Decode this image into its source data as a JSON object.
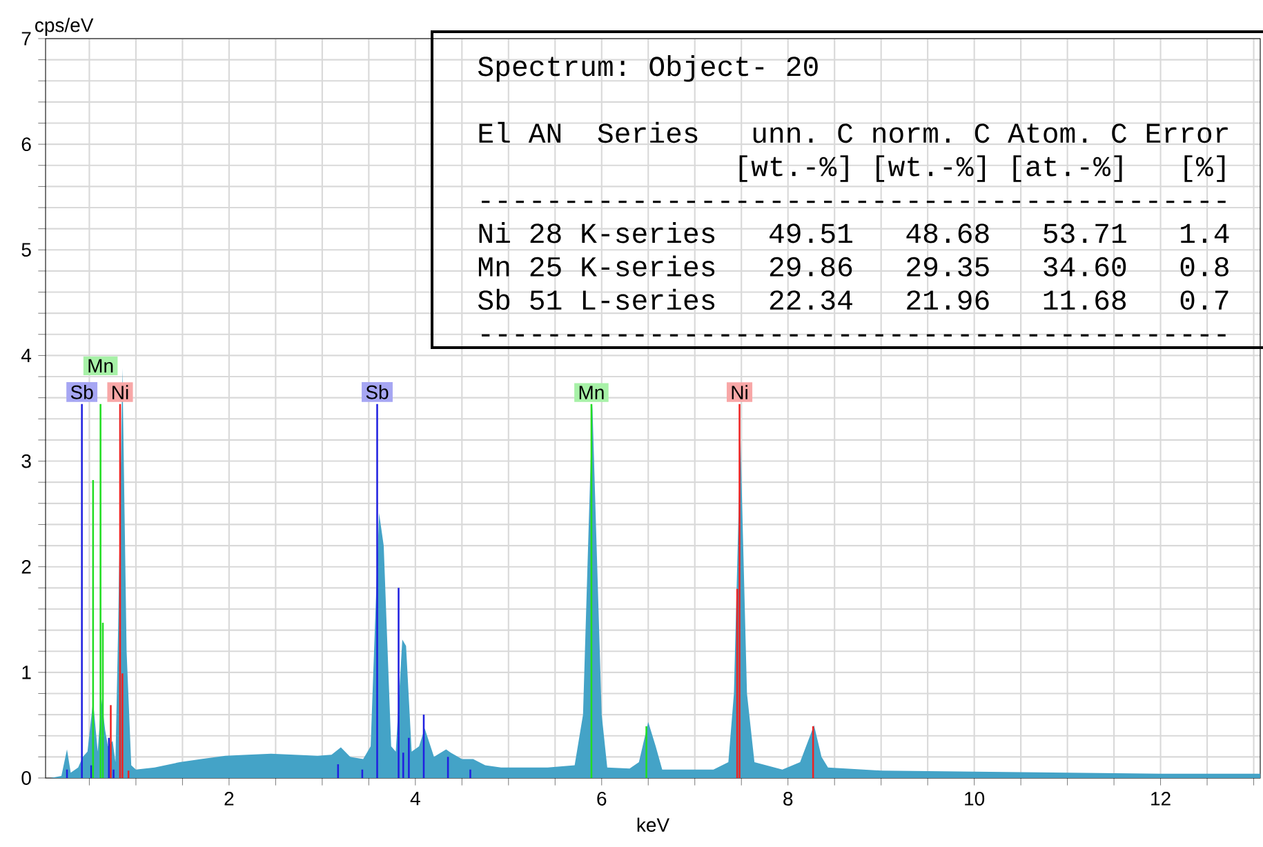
{
  "chart_data": {
    "type": "area",
    "xlabel": "keV",
    "ylabel": "cps/eV",
    "xlim": [
      0.03,
      13.07
    ],
    "ylim": [
      0,
      7
    ],
    "xticks": [
      {
        "value": 0.5,
        "label": null
      },
      {
        "value": 1,
        "label": null
      },
      {
        "value": 1.5,
        "label": null
      },
      2,
      {
        "value": 2.5,
        "label": null
      },
      {
        "value": 3,
        "label": null
      },
      {
        "value": 3.5,
        "label": null
      },
      4,
      {
        "value": 4.5,
        "label": null
      },
      {
        "value": 5,
        "label": null
      },
      {
        "value": 5.5,
        "label": null
      },
      6,
      {
        "value": 6.5,
        "label": null
      },
      {
        "value": 7,
        "label": null
      },
      {
        "value": 7.5,
        "label": null
      },
      8,
      {
        "value": 8.5,
        "label": null
      },
      {
        "value": 9,
        "label": null
      },
      {
        "value": 9.5,
        "label": null
      },
      10,
      {
        "value": 10.5,
        "label": null
      },
      {
        "value": 11,
        "label": null
      },
      {
        "value": 11.5,
        "label": null
      },
      12,
      {
        "value": 12.5,
        "label": null
      },
      {
        "value": 13,
        "label": null
      }
    ],
    "yticks": [
      0,
      {
        "value": 0.2,
        "label": null
      },
      {
        "value": 0.4,
        "label": null
      },
      {
        "value": 0.6,
        "label": null
      },
      {
        "value": 0.8,
        "label": null
      },
      1,
      {
        "value": 1.2,
        "label": null
      },
      {
        "value": 1.4,
        "label": null
      },
      {
        "value": 1.6,
        "label": null
      },
      {
        "value": 1.8,
        "label": null
      },
      2,
      {
        "value": 2.2,
        "label": null
      },
      {
        "value": 2.4,
        "label": null
      },
      {
        "value": 2.6,
        "label": null
      },
      {
        "value": 2.8,
        "label": null
      },
      3,
      {
        "value": 3.2,
        "label": null
      },
      {
        "value": 3.4,
        "label": null
      },
      {
        "value": 3.6,
        "label": null
      },
      {
        "value": 3.8,
        "label": null
      },
      4,
      {
        "value": 4.2,
        "label": null
      },
      {
        "value": 4.4,
        "label": null
      },
      {
        "value": 4.6,
        "label": null
      },
      {
        "value": 4.8,
        "label": null
      },
      5,
      {
        "value": 5.2,
        "label": null
      },
      {
        "value": 5.4,
        "label": null
      },
      {
        "value": 5.6,
        "label": null
      },
      {
        "value": 5.8,
        "label": null
      },
      6,
      {
        "value": 6.2,
        "label": null
      },
      {
        "value": 6.4,
        "label": null
      },
      {
        "value": 6.6,
        "label": null
      },
      {
        "value": 6.8,
        "label": null
      },
      7
    ],
    "grid": true,
    "series": [
      {
        "color": "#44a3c7",
        "x": [
          0.08,
          0.2,
          0.26,
          0.3,
          0.38,
          0.43,
          0.48,
          0.54,
          0.59,
          0.63,
          0.67,
          0.7,
          0.75,
          0.78,
          0.81,
          0.855,
          0.9,
          0.95,
          1.0,
          1.2,
          1.47,
          1.7,
          1.96,
          2.2,
          2.45,
          2.7,
          2.95,
          3.1,
          3.2,
          3.3,
          3.44,
          3.52,
          3.61,
          3.66,
          3.74,
          3.79,
          3.86,
          3.9,
          3.96,
          4.04,
          4.1,
          4.2,
          4.33,
          4.38,
          4.5,
          4.62,
          4.75,
          4.92,
          5.2,
          5.42,
          5.71,
          5.8,
          5.9,
          6.0,
          6.06,
          6.3,
          6.4,
          6.5,
          6.58,
          6.65,
          7.0,
          7.2,
          7.36,
          7.42,
          7.49,
          7.56,
          7.64,
          7.94,
          8.13,
          8.28,
          8.36,
          8.43,
          9,
          10,
          11,
          12,
          13.07
        ],
        "values": [
          0.0,
          0.02,
          0.27,
          0.05,
          0.1,
          0.2,
          0.25,
          0.73,
          0.25,
          0.75,
          0.45,
          0.3,
          0.35,
          0.15,
          1.45,
          3.88,
          1.2,
          0.12,
          0.08,
          0.1,
          0.15,
          0.18,
          0.21,
          0.22,
          0.23,
          0.22,
          0.21,
          0.22,
          0.29,
          0.2,
          0.18,
          0.3,
          2.51,
          2.2,
          0.3,
          0.25,
          1.31,
          1.25,
          0.25,
          0.3,
          0.47,
          0.2,
          0.27,
          0.24,
          0.18,
          0.18,
          0.12,
          0.1,
          0.1,
          0.1,
          0.12,
          0.6,
          3.54,
          0.6,
          0.1,
          0.09,
          0.15,
          0.53,
          0.3,
          0.08,
          0.08,
          0.08,
          0.15,
          0.8,
          3.21,
          0.8,
          0.15,
          0.08,
          0.15,
          0.5,
          0.2,
          0.1,
          0.07,
          0.06,
          0.05,
          0.04,
          0.04
        ]
      },
      {
        "type": "bar",
        "name": "Sb",
        "color": "#2020e0",
        "x": [
          0.26,
          0.42,
          0.52,
          0.71,
          0.76,
          3.17,
          3.43,
          3.59,
          3.82,
          3.87,
          3.93,
          4.09,
          4.35,
          4.59
        ],
        "values": [
          0.08,
          3.54,
          0.12,
          0.38,
          0.08,
          0.13,
          0.08,
          3.54,
          1.8,
          0.24,
          0.38,
          0.6,
          0.2,
          0.08
        ]
      },
      {
        "type": "bar",
        "name": "Mn",
        "color": "#22dd22",
        "x": [
          0.54,
          0.62,
          0.645,
          5.89,
          6.48
        ],
        "values": [
          2.82,
          3.54,
          1.47,
          3.54,
          0.49
        ]
      },
      {
        "type": "bar",
        "name": "Ni",
        "color": "#ee2222",
        "x": [
          0.73,
          0.83,
          0.855,
          0.92,
          7.455,
          7.48,
          8.27
        ],
        "values": [
          0.69,
          3.54,
          0.99,
          0.07,
          1.79,
          3.54,
          0.49
        ]
      }
    ],
    "annotations": [
      "Spectrum: Object- 20",
      "El AN  Series   unn. C norm. C Atom. C Error",
      "               [wt.-%] [wt.-%] [at.-%]   [%]",
      "--------------------------------------------",
      "Ni 28 K-series   49.51   48.68   53.71   1.4",
      "Mn 25 K-series   29.86   29.35   34.60   0.8",
      "Sb 51 L-series   22.34   21.96   11.68   0.7",
      "--------------------------------------------"
    ]
  }
}
